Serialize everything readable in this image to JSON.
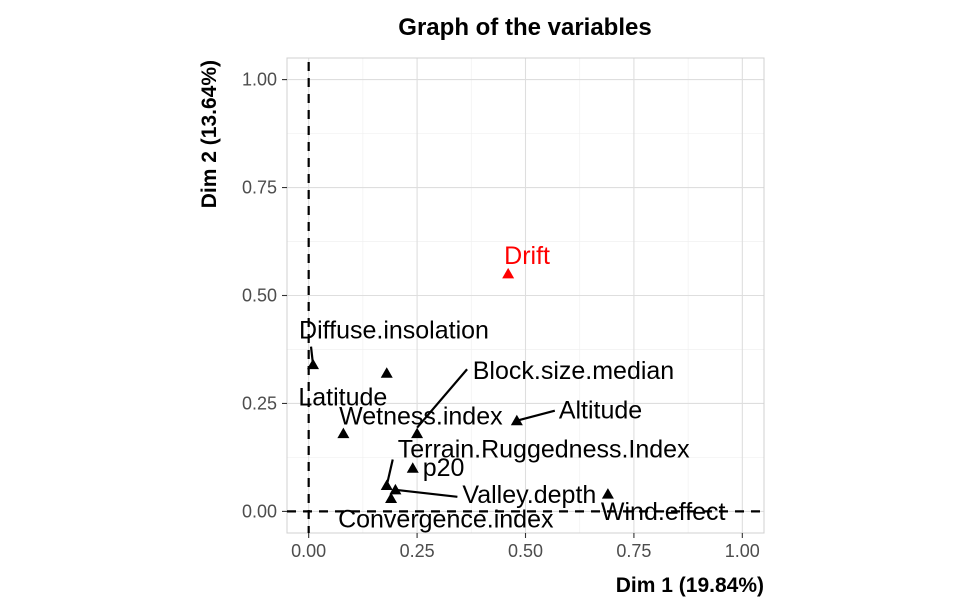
{
  "chart_data": {
    "type": "scatter",
    "title": "Graph of the variables",
    "xlabel": "Dim 1 (19.84%)",
    "ylabel": "Dim 2 (13.64%)",
    "xlim": [
      -0.05,
      1.05
    ],
    "ylim": [
      -0.05,
      1.05
    ],
    "xticks": [
      0.0,
      0.25,
      0.5,
      0.75,
      1.0
    ],
    "yticks": [
      0.0,
      0.25,
      0.5,
      0.75,
      1.0
    ],
    "xtick_labels": [
      "0.00",
      "0.25",
      "0.50",
      "0.75",
      "1.00"
    ],
    "ytick_labels": [
      "0.00",
      "0.25",
      "0.50",
      "0.75",
      "1.00"
    ],
    "grid": true,
    "reference_lines": {
      "x": 0,
      "y": 0
    },
    "colors": {
      "active": "#000000",
      "supplementary": "#ff0000"
    },
    "points": [
      {
        "label": "Drift",
        "x": 0.46,
        "y": 0.55,
        "supplementary": true
      },
      {
        "label": "Diffuse.insolation",
        "x": 0.01,
        "y": 0.34
      },
      {
        "label": "Block.size.median",
        "x": 0.18,
        "y": 0.32
      },
      {
        "label": "Latitude",
        "x": 0.08,
        "y": 0.18
      },
      {
        "label": "Wetness.index",
        "x": 0.25,
        "y": 0.18
      },
      {
        "label": "Altitude",
        "x": 0.48,
        "y": 0.21
      },
      {
        "label": "Terrain.Ruggedness.Index",
        "x": 0.18,
        "y": 0.06
      },
      {
        "label": "p20",
        "x": 0.24,
        "y": 0.1
      },
      {
        "label": "Valley.depth",
        "x": 0.2,
        "y": 0.05
      },
      {
        "label": "Convergence.index",
        "x": 0.19,
        "y": 0.03
      },
      {
        "label": "Wind.effect",
        "x": 0.69,
        "y": 0.04
      }
    ]
  }
}
